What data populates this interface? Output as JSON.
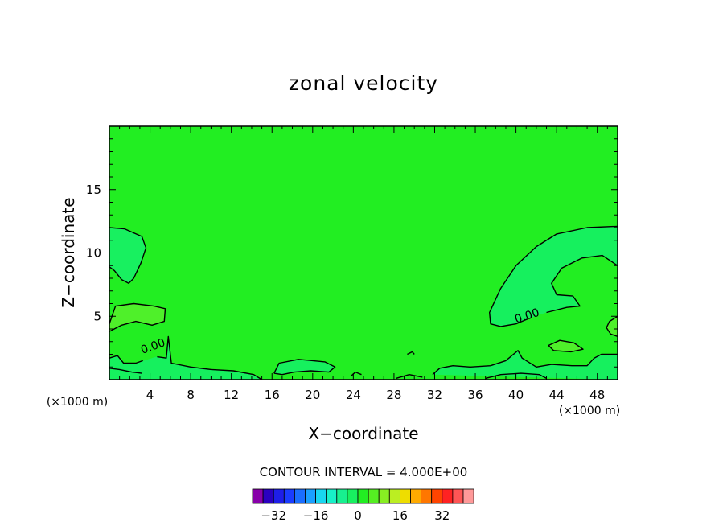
{
  "chart_data": {
    "type": "heatmap",
    "title": "zonal velocity",
    "xlabel": "X−coordinate",
    "ylabel": "Z−coordinate",
    "x_unit": "(×1000 m)",
    "y_unit": "(×1000 m)",
    "xlim": [
      0,
      50
    ],
    "ylim": [
      0,
      20
    ],
    "x_ticks": [
      {
        "value": 4,
        "label": "4"
      },
      {
        "value": 8,
        "label": "8"
      },
      {
        "value": 12,
        "label": "12"
      },
      {
        "value": 16,
        "label": "16"
      },
      {
        "value": 20,
        "label": "20"
      },
      {
        "value": 24,
        "label": "24"
      },
      {
        "value": 28,
        "label": "28"
      },
      {
        "value": 32,
        "label": "32"
      },
      {
        "value": 36,
        "label": "36"
      },
      {
        "value": 40,
        "label": "40"
      },
      {
        "value": 44,
        "label": "44"
      },
      {
        "value": 48,
        "label": "48"
      }
    ],
    "y_ticks": [
      {
        "value": 5,
        "label": "5"
      },
      {
        "value": 10,
        "label": "10"
      },
      {
        "value": 15,
        "label": "15"
      }
    ],
    "contour_interval_text": "CONTOUR INTERVAL = 4.000E+00",
    "contour_labels": [
      {
        "x": 4.3,
        "z": 2.6,
        "angle": -20,
        "text": "0.00"
      },
      {
        "x": 41.1,
        "z": 5.0,
        "angle": -18,
        "text": "0.00"
      }
    ],
    "background_fill": "#22ee22",
    "regions": [
      {
        "name": "region-upper-left-negative",
        "fill": "#18f060",
        "points": [
          [
            0,
            12
          ],
          [
            1.5,
            11.9
          ],
          [
            3.2,
            11.3
          ],
          [
            3.6,
            10.4
          ],
          [
            3.1,
            9.2
          ],
          [
            2.4,
            8.0
          ],
          [
            1.9,
            7.6
          ],
          [
            1.2,
            7.9
          ],
          [
            0.5,
            8.6
          ],
          [
            0,
            8.9
          ]
        ]
      },
      {
        "name": "region-left-weak-positive",
        "fill": "#4ff02a",
        "points": [
          [
            0,
            4.4
          ],
          [
            0.6,
            5.8
          ],
          [
            2.4,
            6.0
          ],
          [
            4.4,
            5.8
          ],
          [
            5.5,
            5.6
          ],
          [
            5.4,
            4.6
          ],
          [
            4.2,
            4.3
          ],
          [
            2.6,
            4.6
          ],
          [
            1.2,
            4.3
          ],
          [
            0,
            3.8
          ]
        ]
      },
      {
        "name": "region-upper-right-negative",
        "fill": "#16f05e",
        "points": [
          [
            50,
            12.1
          ],
          [
            47,
            12
          ],
          [
            44,
            11.5
          ],
          [
            42,
            10.5
          ],
          [
            40,
            9
          ],
          [
            38.5,
            7.2
          ],
          [
            37.4,
            5.3
          ],
          [
            37.5,
            4.4
          ],
          [
            38.5,
            4.2
          ],
          [
            40,
            4.4
          ],
          [
            41.2,
            4.8
          ],
          [
            43,
            5.3
          ],
          [
            45,
            5.7
          ],
          [
            46.3,
            5.8
          ],
          [
            45.6,
            6.6
          ],
          [
            44,
            6.7
          ],
          [
            43.5,
            7.6
          ],
          [
            44.5,
            8.8
          ],
          [
            46.5,
            9.6
          ],
          [
            48.5,
            9.8
          ],
          [
            50,
            9
          ]
        ]
      },
      {
        "name": "region-right-weak-positive",
        "fill": "#4ff02a",
        "points": [
          [
            50,
            5
          ],
          [
            49.2,
            4.6
          ],
          [
            48.9,
            4.1
          ],
          [
            49.3,
            3.6
          ],
          [
            50,
            3.4
          ]
        ]
      },
      {
        "name": "region-lower-right-small",
        "fill": "#4ff02a",
        "points": [
          [
            43.2,
            2.7
          ],
          [
            44.3,
            3.1
          ],
          [
            45.7,
            2.9
          ],
          [
            46.6,
            2.4
          ],
          [
            45.4,
            2.2
          ],
          [
            43.7,
            2.3
          ]
        ]
      },
      {
        "name": "region-bottom-left-negative",
        "fill": "#16f05e",
        "points": [
          [
            0,
            0
          ],
          [
            0,
            1.7
          ],
          [
            0.8,
            1.9
          ],
          [
            1.4,
            1.3
          ],
          [
            2.6,
            1.3
          ],
          [
            3.4,
            1.5
          ],
          [
            4.6,
            1.8
          ],
          [
            5.6,
            1.7
          ],
          [
            5.8,
            3.4
          ],
          [
            6.1,
            1.3
          ],
          [
            8,
            1.0
          ],
          [
            10,
            0.8
          ],
          [
            12.2,
            0.7
          ],
          [
            14.2,
            0.4
          ],
          [
            15,
            0
          ]
        ]
      },
      {
        "name": "region-bottom-middle-negative",
        "fill": "#16f05e",
        "points": [
          [
            16.2,
            0.5
          ],
          [
            16.7,
            1.3
          ],
          [
            18.6,
            1.6
          ],
          [
            21.2,
            1.4
          ],
          [
            22.2,
            1.0
          ],
          [
            21.6,
            0.6
          ],
          [
            19.8,
            0.7
          ],
          [
            18.2,
            0.6
          ],
          [
            17,
            0.4
          ]
        ]
      },
      {
        "name": "region-bottom-right-negative",
        "fill": "#16f05e",
        "points": [
          [
            31.8,
            0.4
          ],
          [
            32.5,
            0.9
          ],
          [
            33.8,
            1.1
          ],
          [
            35.5,
            1.0
          ],
          [
            37.5,
            1.1
          ],
          [
            39,
            1.5
          ],
          [
            40.2,
            2.3
          ],
          [
            40.6,
            1.7
          ],
          [
            42,
            1.0
          ],
          [
            43.5,
            1.2
          ],
          [
            45.5,
            1.1
          ],
          [
            47,
            1.1
          ],
          [
            47.7,
            1.7
          ],
          [
            48.4,
            2.0
          ],
          [
            50,
            2.0
          ],
          [
            50,
            0
          ]
        ]
      }
    ],
    "contours": [
      {
        "name": "contour-upper-left",
        "points": [
          [
            0,
            12
          ],
          [
            1.5,
            11.9
          ],
          [
            3.2,
            11.3
          ],
          [
            3.6,
            10.4
          ],
          [
            3.1,
            9.2
          ],
          [
            2.4,
            8.0
          ],
          [
            1.9,
            7.6
          ],
          [
            1.2,
            7.9
          ],
          [
            0.5,
            8.6
          ],
          [
            0,
            8.9
          ]
        ]
      },
      {
        "name": "contour-left-weak",
        "points": [
          [
            0,
            4.4
          ],
          [
            0.6,
            5.8
          ],
          [
            2.4,
            6.0
          ],
          [
            4.4,
            5.8
          ],
          [
            5.5,
            5.6
          ],
          [
            5.4,
            4.6
          ],
          [
            4.2,
            4.3
          ],
          [
            2.6,
            4.6
          ],
          [
            1.2,
            4.3
          ],
          [
            0,
            3.8
          ]
        ]
      },
      {
        "name": "contour-upper-right-outer",
        "points": [
          [
            50,
            12.1
          ],
          [
            47,
            12
          ],
          [
            44,
            11.5
          ],
          [
            42,
            10.5
          ],
          [
            40,
            9
          ],
          [
            38.5,
            7.2
          ],
          [
            37.4,
            5.3
          ],
          [
            37.5,
            4.4
          ],
          [
            38.5,
            4.2
          ],
          [
            40,
            4.4
          ],
          [
            41.2,
            4.8
          ]
        ]
      },
      {
        "name": "contour-upper-right-inner",
        "points": [
          [
            43,
            5.3
          ],
          [
            45,
            5.7
          ],
          [
            46.3,
            5.8
          ],
          [
            45.6,
            6.6
          ],
          [
            44,
            6.7
          ],
          [
            43.5,
            7.6
          ],
          [
            44.5,
            8.8
          ],
          [
            46.5,
            9.6
          ],
          [
            48.5,
            9.8
          ],
          [
            50,
            9
          ]
        ]
      },
      {
        "name": "contour-right-edge",
        "points": [
          [
            50,
            5
          ],
          [
            49.2,
            4.6
          ],
          [
            48.9,
            4.1
          ],
          [
            49.3,
            3.6
          ],
          [
            50,
            3.4
          ]
        ]
      },
      {
        "name": "contour-lower-right-small",
        "points": [
          [
            43.2,
            2.7
          ],
          [
            44.3,
            3.1
          ],
          [
            45.7,
            2.9
          ],
          [
            46.6,
            2.4
          ],
          [
            45.4,
            2.2
          ],
          [
            43.7,
            2.3
          ],
          [
            43.2,
            2.7
          ]
        ]
      },
      {
        "name": "contour-bottom-left-a",
        "points": [
          [
            0,
            1.7
          ],
          [
            0.8,
            1.9
          ],
          [
            1.4,
            1.3
          ],
          [
            2.6,
            1.3
          ],
          [
            3.3,
            1.5
          ]
        ]
      },
      {
        "name": "contour-bottom-left-b",
        "points": [
          [
            4.7,
            1.8
          ],
          [
            5.6,
            1.7
          ],
          [
            5.8,
            3.4
          ],
          [
            6.1,
            1.3
          ],
          [
            8,
            1.0
          ],
          [
            10,
            0.8
          ],
          [
            12.2,
            0.7
          ],
          [
            14.2,
            0.4
          ],
          [
            15,
            0
          ]
        ]
      },
      {
        "name": "contour-bottom-left-c",
        "points": [
          [
            0,
            0.9
          ],
          [
            1.0,
            0.8
          ],
          [
            2.2,
            0.6
          ],
          [
            3.2,
            0.5
          ]
        ]
      },
      {
        "name": "contour-bottom-middle",
        "points": [
          [
            16.2,
            0.5
          ],
          [
            16.7,
            1.3
          ],
          [
            18.6,
            1.6
          ],
          [
            21.2,
            1.4
          ],
          [
            22.2,
            1.0
          ],
          [
            21.6,
            0.6
          ],
          [
            19.8,
            0.7
          ],
          [
            18.2,
            0.6
          ],
          [
            17,
            0.4
          ],
          [
            16.2,
            0.5
          ]
        ]
      },
      {
        "name": "contour-bottom-right",
        "points": [
          [
            31.8,
            0.4
          ],
          [
            32.5,
            0.9
          ],
          [
            33.8,
            1.1
          ],
          [
            35.5,
            1.0
          ],
          [
            37.5,
            1.1
          ],
          [
            39,
            1.5
          ],
          [
            40.2,
            2.3
          ],
          [
            40.6,
            1.7
          ],
          [
            42,
            1.0
          ],
          [
            43.5,
            1.2
          ],
          [
            45.5,
            1.1
          ],
          [
            47,
            1.1
          ],
          [
            47.7,
            1.7
          ],
          [
            48.4,
            2.0
          ],
          [
            50,
            2.0
          ]
        ]
      },
      {
        "name": "contour-bottom-small-a",
        "points": [
          [
            23.8,
            0.3
          ],
          [
            24.2,
            0.6
          ],
          [
            24.8,
            0.4
          ]
        ]
      },
      {
        "name": "contour-bottom-small-b",
        "points": [
          [
            29.3,
            2.0
          ],
          [
            29.8,
            2.2
          ],
          [
            30,
            2.0
          ]
        ]
      },
      {
        "name": "contour-bottom-small-c",
        "points": [
          [
            28.2,
            0.1
          ],
          [
            29.5,
            0.4
          ],
          [
            30.8,
            0.2
          ]
        ]
      },
      {
        "name": "contour-bottom-small-d",
        "points": [
          [
            37,
            0.1
          ],
          [
            38.5,
            0.4
          ],
          [
            40.5,
            0.5
          ],
          [
            42.3,
            0.4
          ],
          [
            43,
            0.1
          ]
        ]
      }
    ],
    "colorbar": {
      "ticks": [
        {
          "index": 1,
          "label": "−32"
        },
        {
          "index": 5,
          "label": "−16"
        },
        {
          "index": 9,
          "label": "0"
        },
        {
          "index": 13,
          "label": "16"
        },
        {
          "index": 17,
          "label": "32"
        }
      ],
      "colors": [
        "#8800aa",
        "#2a00c0",
        "#1e1ee8",
        "#1a3cff",
        "#1a6eff",
        "#1aa0ff",
        "#19d6f0",
        "#18f0c8",
        "#18f090",
        "#18f060",
        "#22ee22",
        "#55ee22",
        "#88ee22",
        "#bbee22",
        "#eedd00",
        "#ffaa00",
        "#ff7700",
        "#ff4400",
        "#ff2222",
        "#ff5555",
        "#ff9999"
      ]
    }
  }
}
